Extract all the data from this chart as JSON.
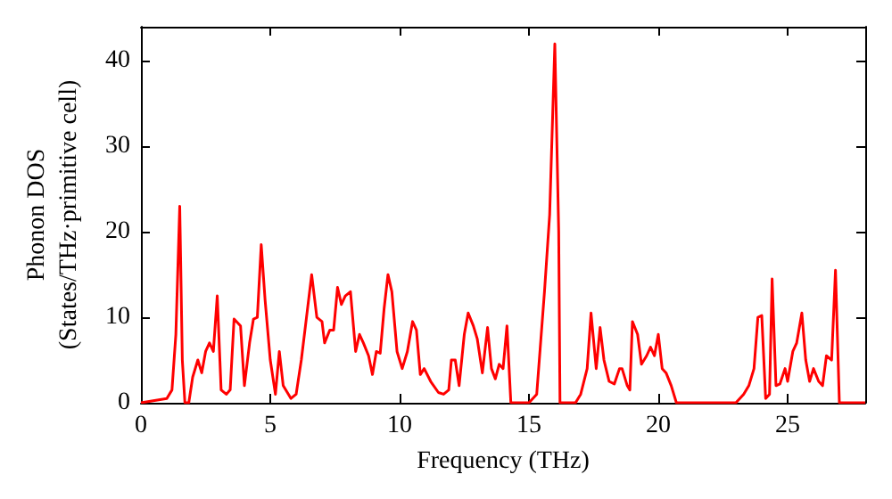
{
  "chart_data": {
    "type": "line",
    "xlabel": "Frequency (THz)",
    "ylabel": "Phonon DOS\n(States/THz·primitive cell)",
    "xlim": [
      0,
      28
    ],
    "xticks": [
      0,
      5,
      10,
      15,
      20,
      25
    ],
    "ylim": [
      0,
      44
    ],
    "yticks": [
      0,
      10,
      20,
      30,
      40
    ],
    "grid": false,
    "marker": "none",
    "line_style": "solid",
    "series": [
      {
        "color": "#ff0000",
        "x": [
          0,
          1.0,
          1.2,
          1.35,
          1.5,
          1.6,
          1.7,
          1.85,
          2.0,
          2.2,
          2.35,
          2.5,
          2.65,
          2.8,
          2.95,
          3.1,
          3.3,
          3.45,
          3.6,
          3.85,
          4.0,
          4.2,
          4.35,
          4.5,
          4.65,
          4.8,
          5.0,
          5.2,
          5.35,
          5.5,
          5.8,
          6.0,
          6.2,
          6.4,
          6.6,
          6.8,
          7.0,
          7.1,
          7.3,
          7.45,
          7.6,
          7.75,
          7.9,
          8.1,
          8.3,
          8.45,
          8.6,
          8.8,
          8.95,
          9.1,
          9.25,
          9.4,
          9.55,
          9.7,
          9.9,
          10.1,
          10.3,
          10.5,
          10.65,
          10.8,
          10.95,
          11.2,
          11.5,
          11.7,
          11.9,
          12.0,
          12.15,
          12.3,
          12.5,
          12.65,
          12.85,
          13.0,
          13.2,
          13.4,
          13.55,
          13.7,
          13.85,
          14.0,
          14.15,
          14.3,
          15.0,
          15.3,
          15.6,
          15.8,
          16.0,
          16.15,
          16.2,
          16.8,
          17.0,
          17.25,
          17.4,
          17.6,
          17.75,
          17.9,
          18.1,
          18.3,
          18.5,
          18.6,
          18.8,
          18.9,
          19.0,
          19.2,
          19.35,
          19.55,
          19.7,
          19.85,
          20.0,
          20.15,
          20.3,
          20.5,
          20.7,
          23.0,
          23.3,
          23.5,
          23.7,
          23.85,
          24.0,
          24.15,
          24.3,
          24.4,
          24.55,
          24.7,
          24.9,
          25.0,
          25.2,
          25.35,
          25.55,
          25.7,
          25.85,
          26.0,
          26.2,
          26.35,
          26.5,
          26.7,
          26.85,
          27.0,
          28.0
        ],
        "values": [
          0,
          0.5,
          1.5,
          8,
          23,
          5,
          0,
          0,
          3,
          5,
          3.5,
          6,
          7,
          6,
          12.5,
          1.5,
          1,
          1.5,
          9.8,
          9,
          2,
          7,
          9.8,
          10,
          18.5,
          12,
          5,
          1,
          6,
          2,
          0.5,
          1,
          5,
          10,
          15,
          10,
          9.5,
          7,
          8.5,
          8.5,
          13.5,
          11.5,
          12.5,
          13,
          6,
          8,
          7,
          5.5,
          3.3,
          6,
          5.8,
          11,
          15,
          13,
          6,
          4,
          6,
          9.5,
          8.5,
          3.3,
          4,
          2.5,
          1.2,
          1,
          1.5,
          5,
          5,
          2,
          8,
          10.5,
          9,
          7.5,
          3.5,
          8.8,
          4,
          2.8,
          4.5,
          4,
          9,
          0,
          0,
          1,
          13,
          22,
          42,
          20,
          0,
          0,
          1,
          4,
          10.5,
          4,
          8.8,
          5,
          2.5,
          2.2,
          4,
          4,
          2,
          1.5,
          9.5,
          8,
          4.5,
          5.5,
          6.5,
          5.5,
          8,
          4,
          3.5,
          2,
          0,
          0,
          1,
          2,
          4,
          10,
          10.2,
          0.5,
          1,
          14.5,
          2,
          2.2,
          4,
          2.5,
          6,
          7,
          10.5,
          5,
          2.5,
          4,
          2.5,
          2,
          5.5,
          5,
          15.5,
          0,
          0
        ]
      }
    ]
  }
}
